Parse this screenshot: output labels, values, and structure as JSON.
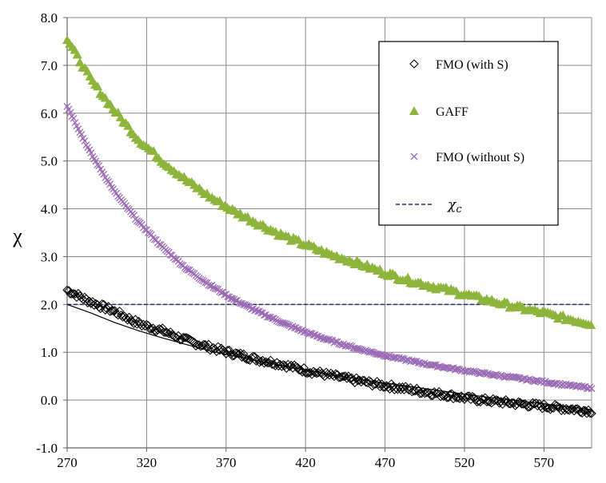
{
  "chart_data": {
    "type": "scatter",
    "title": "",
    "xlabel": "",
    "ylabel": "χ",
    "xlim": [
      270,
      600
    ],
    "ylim": [
      -1.0,
      8.0
    ],
    "grid": true,
    "legend_position": "top-right",
    "x_ticks": [
      "270",
      "320",
      "370",
      "420",
      "470",
      "520",
      "570"
    ],
    "x_tick_values": [
      270,
      320,
      370,
      420,
      470,
      520,
      570
    ],
    "y_ticks": [
      "-1.0",
      "0.0",
      "1.0",
      "2.0",
      "3.0",
      "4.0",
      "5.0",
      "6.0",
      "7.0",
      "8.0"
    ],
    "y_tick_values": [
      -1,
      0,
      1,
      2,
      3,
      4,
      5,
      6,
      7,
      8
    ],
    "series": [
      {
        "name": "FMO (with S)",
        "marker": "diamond",
        "color": "#000000",
        "x": [
          270,
          285,
          300,
          315,
          330,
          345,
          360,
          375,
          390,
          405,
          420,
          435,
          450,
          465,
          480,
          495,
          510,
          525,
          540,
          555,
          570,
          585,
          600
        ],
        "y": [
          2.3,
          2.05,
          1.85,
          1.6,
          1.45,
          1.25,
          1.1,
          0.97,
          0.85,
          0.75,
          0.62,
          0.52,
          0.42,
          0.33,
          0.25,
          0.17,
          0.1,
          0.02,
          -0.03,
          -0.08,
          -0.13,
          -0.18,
          -0.23
        ]
      },
      {
        "name": "GAFF",
        "marker": "triangle",
        "color": "#8DB53C",
        "x": [
          270,
          285,
          300,
          315,
          330,
          345,
          360,
          375,
          390,
          405,
          420,
          435,
          450,
          465,
          480,
          495,
          510,
          525,
          540,
          555,
          570,
          585,
          600
        ],
        "y": [
          7.55,
          6.7,
          6.05,
          5.45,
          5.0,
          4.6,
          4.25,
          3.95,
          3.7,
          3.45,
          3.25,
          3.05,
          2.9,
          2.72,
          2.55,
          2.42,
          2.3,
          2.17,
          2.05,
          1.93,
          1.82,
          1.7,
          1.6
        ]
      },
      {
        "name": "FMO (without S)",
        "marker": "x",
        "color": "#9B6BB5",
        "x": [
          270,
          285,
          300,
          315,
          330,
          345,
          360,
          375,
          390,
          405,
          420,
          435,
          450,
          465,
          480,
          495,
          510,
          525,
          540,
          555,
          570,
          585,
          600
        ],
        "y": [
          6.15,
          5.15,
          4.35,
          3.72,
          3.2,
          2.75,
          2.4,
          2.1,
          1.85,
          1.62,
          1.42,
          1.25,
          1.1,
          0.97,
          0.86,
          0.76,
          0.67,
          0.59,
          0.52,
          0.45,
          0.38,
          0.31,
          0.25
        ]
      }
    ],
    "fit_line": {
      "name": "FMO (with S) fit",
      "color": "#000000",
      "x": [
        270,
        285,
        300,
        315,
        330,
        345,
        360,
        375,
        390,
        405,
        420,
        435,
        450,
        465,
        480,
        495,
        510,
        525,
        540,
        555,
        570,
        585,
        600
      ],
      "y": [
        2.0,
        1.82,
        1.62,
        1.45,
        1.3,
        1.16,
        1.03,
        0.92,
        0.82,
        0.72,
        0.63,
        0.54,
        0.46,
        0.38,
        0.31,
        0.24,
        0.17,
        0.1,
        0.04,
        -0.02,
        -0.08,
        -0.14,
        -0.2
      ]
    },
    "reference_line": {
      "name": "χc",
      "y": 2.0,
      "color": "#1F2F6F",
      "style": "dashed"
    },
    "legend": [
      {
        "label": "FMO (with S)",
        "marker": "diamond",
        "color": "#000000"
      },
      {
        "label": "GAFF",
        "marker": "triangle",
        "color": "#8DB53C"
      },
      {
        "label": "FMO (without S)",
        "marker": "x",
        "color": "#9B6BB5"
      },
      {
        "label_base": "χ",
        "label_sub": "c",
        "marker": "dashed-line",
        "color": "#1F2F6F"
      }
    ]
  }
}
